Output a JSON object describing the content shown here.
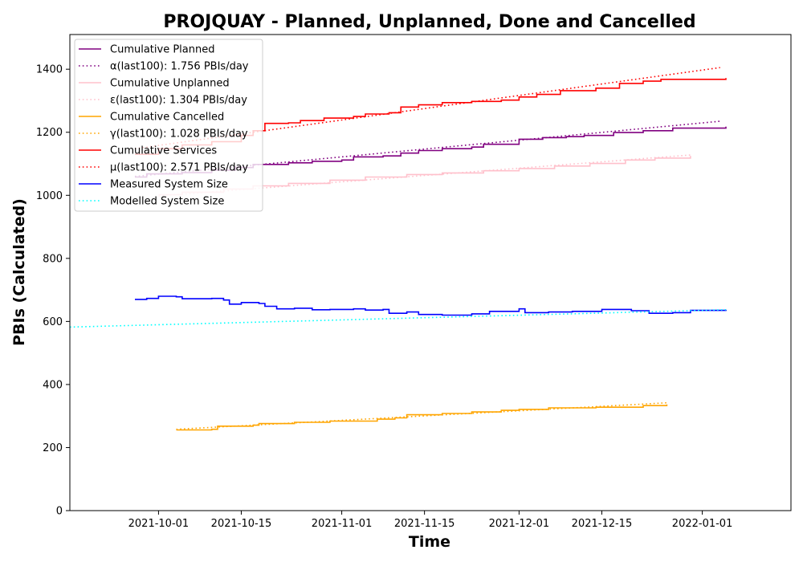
{
  "chart_data": {
    "type": "line",
    "title": "PROJQUAY - Planned, Unplanned, Done  and Cancelled",
    "xlabel": "Time",
    "ylabel": "PBIs (Calculated)",
    "x_axis_type": "date",
    "xlim": [
      "2021-09-16",
      "2022-01-16"
    ],
    "ylim": [
      0,
      1510
    ],
    "x_ticks": [
      "2021-10-01",
      "2021-10-15",
      "2021-11-01",
      "2021-11-15",
      "2021-12-01",
      "2021-12-15",
      "2022-01-01"
    ],
    "y_ticks": [
      0,
      200,
      400,
      600,
      800,
      1000,
      1200,
      1400
    ],
    "grid": false,
    "legend_position": "top-left",
    "series": [
      {
        "name": "Cumulative Planned",
        "color": "#800080",
        "style": "solid",
        "points": [
          [
            "2021-09-27",
            1058
          ],
          [
            "2021-09-29",
            1068
          ],
          [
            "2021-10-05",
            1072
          ],
          [
            "2021-10-10",
            1080
          ],
          [
            "2021-10-14",
            1088
          ],
          [
            "2021-10-17",
            1098
          ],
          [
            "2021-10-23",
            1103
          ],
          [
            "2021-10-27",
            1108
          ],
          [
            "2021-11-01",
            1112
          ],
          [
            "2021-11-03",
            1122
          ],
          [
            "2021-11-08",
            1125
          ],
          [
            "2021-11-11",
            1134
          ],
          [
            "2021-11-14",
            1142
          ],
          [
            "2021-11-18",
            1148
          ],
          [
            "2021-11-23",
            1153
          ],
          [
            "2021-11-25",
            1162
          ],
          [
            "2021-12-01",
            1178
          ],
          [
            "2021-12-05",
            1183
          ],
          [
            "2021-12-09",
            1186
          ],
          [
            "2021-12-12",
            1190
          ],
          [
            "2021-12-17",
            1199
          ],
          [
            "2021-12-22",
            1205
          ],
          [
            "2021-12-27",
            1213
          ],
          [
            "2022-01-05",
            1218
          ]
        ]
      },
      {
        "name": "α(last100): 1.756 PBIs/day",
        "color": "#800080",
        "style": "dotted",
        "points": [
          [
            "2021-09-27",
            1060
          ],
          [
            "2022-01-04",
            1235
          ]
        ]
      },
      {
        "name": "Cumulative Unplanned",
        "color": "#ffc0cb",
        "style": "solid",
        "points": [
          [
            "2021-10-01",
            1002
          ],
          [
            "2021-10-05",
            1010
          ],
          [
            "2021-10-12",
            1020
          ],
          [
            "2021-10-17",
            1030
          ],
          [
            "2021-10-23",
            1038
          ],
          [
            "2021-10-30",
            1048
          ],
          [
            "2021-11-05",
            1058
          ],
          [
            "2021-11-12",
            1066
          ],
          [
            "2021-11-18",
            1071
          ],
          [
            "2021-11-25",
            1078
          ],
          [
            "2021-12-01",
            1085
          ],
          [
            "2021-12-07",
            1093
          ],
          [
            "2021-12-13",
            1101
          ],
          [
            "2021-12-19",
            1112
          ],
          [
            "2021-12-24",
            1118
          ],
          [
            "2021-12-30",
            1125
          ]
        ]
      },
      {
        "name": "ε(last100): 1.304 PBIs/day",
        "color": "#ffc0cb",
        "style": "dotted",
        "points": [
          [
            "2021-10-01",
            998
          ],
          [
            "2021-12-30",
            1128
          ]
        ]
      },
      {
        "name": "Cumulative Cancelled",
        "color": "#ffa500",
        "style": "solid",
        "points": [
          [
            "2021-10-04",
            256
          ],
          [
            "2021-10-10",
            258
          ],
          [
            "2021-10-11",
            268
          ],
          [
            "2021-10-17",
            271
          ],
          [
            "2021-10-18",
            276
          ],
          [
            "2021-10-24",
            280
          ],
          [
            "2021-10-30",
            284
          ],
          [
            "2021-11-07",
            290
          ],
          [
            "2021-11-10",
            294
          ],
          [
            "2021-11-12",
            304
          ],
          [
            "2021-11-18",
            308
          ],
          [
            "2021-11-23",
            313
          ],
          [
            "2021-11-28",
            318
          ],
          [
            "2021-12-01",
            321
          ],
          [
            "2021-12-06",
            326
          ],
          [
            "2021-12-14",
            328
          ],
          [
            "2021-12-22",
            333
          ],
          [
            "2021-12-26",
            337
          ]
        ]
      },
      {
        "name": "γ(last100): 1.028 PBIs/day",
        "color": "#ffa500",
        "style": "dotted",
        "points": [
          [
            "2021-10-04",
            258
          ],
          [
            "2021-12-26",
            342
          ]
        ]
      },
      {
        "name": "Cumulative Services",
        "color": "#ff0000",
        "style": "solid",
        "points": [
          [
            "2021-09-27",
            1130
          ],
          [
            "2021-10-01",
            1148
          ],
          [
            "2021-10-05",
            1160
          ],
          [
            "2021-10-10",
            1170
          ],
          [
            "2021-10-15",
            1190
          ],
          [
            "2021-10-17",
            1205
          ],
          [
            "2021-10-19",
            1228
          ],
          [
            "2021-10-23",
            1230
          ],
          [
            "2021-10-25",
            1237
          ],
          [
            "2021-10-29",
            1245
          ],
          [
            "2021-11-03",
            1250
          ],
          [
            "2021-11-05",
            1258
          ],
          [
            "2021-11-09",
            1262
          ],
          [
            "2021-11-11",
            1280
          ],
          [
            "2021-11-14",
            1287
          ],
          [
            "2021-11-18",
            1294
          ],
          [
            "2021-11-23",
            1298
          ],
          [
            "2021-11-28",
            1302
          ],
          [
            "2021-12-01",
            1312
          ],
          [
            "2021-12-04",
            1320
          ],
          [
            "2021-12-08",
            1332
          ],
          [
            "2021-12-14",
            1340
          ],
          [
            "2021-12-18",
            1355
          ],
          [
            "2021-12-22",
            1362
          ],
          [
            "2021-12-25",
            1368
          ],
          [
            "2022-01-05",
            1372
          ]
        ]
      },
      {
        "name": "μ(last100): 2.571 PBIs/day",
        "color": "#ff0000",
        "style": "dotted",
        "points": [
          [
            "2021-09-27",
            1148
          ],
          [
            "2022-01-04",
            1405
          ]
        ]
      },
      {
        "name": "Measured System Size",
        "color": "#0000ff",
        "style": "solid",
        "points": [
          [
            "2021-09-27",
            670
          ],
          [
            "2021-09-29",
            673
          ],
          [
            "2021-10-01",
            680
          ],
          [
            "2021-10-04",
            678
          ],
          [
            "2021-10-05",
            672
          ],
          [
            "2021-10-10",
            673
          ],
          [
            "2021-10-12",
            668
          ],
          [
            "2021-10-13",
            655
          ],
          [
            "2021-10-15",
            660
          ],
          [
            "2021-10-18",
            657
          ],
          [
            "2021-10-19",
            648
          ],
          [
            "2021-10-21",
            640
          ],
          [
            "2021-10-24",
            642
          ],
          [
            "2021-10-27",
            637
          ],
          [
            "2021-10-30",
            638
          ],
          [
            "2021-11-03",
            640
          ],
          [
            "2021-11-05",
            636
          ],
          [
            "2021-11-08",
            638
          ],
          [
            "2021-11-09",
            626
          ],
          [
            "2021-11-12",
            630
          ],
          [
            "2021-11-14",
            622
          ],
          [
            "2021-11-18",
            620
          ],
          [
            "2021-11-23",
            624
          ],
          [
            "2021-11-26",
            632
          ],
          [
            "2021-12-01",
            640
          ],
          [
            "2021-12-02",
            628
          ],
          [
            "2021-12-06",
            630
          ],
          [
            "2021-12-10",
            632
          ],
          [
            "2021-12-15",
            638
          ],
          [
            "2021-12-20",
            634
          ],
          [
            "2021-12-23",
            626
          ],
          [
            "2021-12-27",
            628
          ],
          [
            "2021-12-30",
            635
          ],
          [
            "2022-01-05",
            633
          ]
        ]
      },
      {
        "name": "Modelled System Size",
        "color": "#00ffff",
        "style": "dotted",
        "points": [
          [
            "2021-09-16",
            582
          ],
          [
            "2022-01-05",
            637
          ]
        ]
      }
    ]
  }
}
